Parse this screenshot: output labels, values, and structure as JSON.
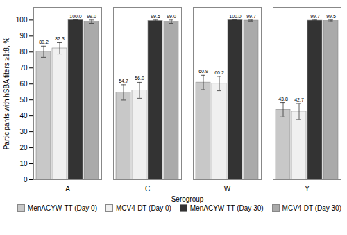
{
  "chart_data": {
    "type": "bar",
    "categories": [
      "A",
      "C",
      "W",
      "Y"
    ],
    "series": [
      {
        "name": "MenACYW-TT (Day 0)",
        "color": "#c8c8c8",
        "values": [
          80.2,
          54.7,
          60.9,
          43.8
        ],
        "errors": [
          3.5,
          4.8,
          4.5,
          4.5
        ],
        "value_labels": [
          "80.2",
          "54.7",
          "60.9",
          "43.8"
        ]
      },
      {
        "name": "MCV4-DT (Day 0)",
        "color": "#f0f0f0",
        "values": [
          82.3,
          56.0,
          60.2,
          42.7
        ],
        "errors": [
          3.5,
          5.0,
          4.5,
          5.0
        ],
        "value_labels": [
          "82.3",
          "56.0",
          "60.2",
          "42.7"
        ]
      },
      {
        "name": "MenACYW-TT (Day 30)",
        "color": "#333333",
        "values": [
          100.0,
          99.5,
          100.0,
          99.7
        ],
        "errors": [
          0.0,
          0.5,
          0.0,
          0.3
        ],
        "value_labels": [
          "100.0",
          "99.5",
          "100.0",
          "99.7"
        ]
      },
      {
        "name": "MCV4-DT (Day 30)",
        "color": "#aaaaaa",
        "values": [
          99.0,
          99.0,
          99.7,
          99.5
        ],
        "errors": [
          1.0,
          1.0,
          0.3,
          0.5
        ],
        "value_labels": [
          "99.0",
          "99.0",
          "99.7",
          "99.5"
        ]
      }
    ],
    "ylabel": "Participants with hSBA titers ≥1:8, %",
    "xlabel": "Serogroup",
    "ylim": [
      0,
      108
    ],
    "yticks": [
      0,
      10,
      20,
      30,
      40,
      50,
      60,
      70,
      80,
      90,
      100
    ],
    "data_labels": true,
    "legend": "lower right",
    "grid": false
  }
}
